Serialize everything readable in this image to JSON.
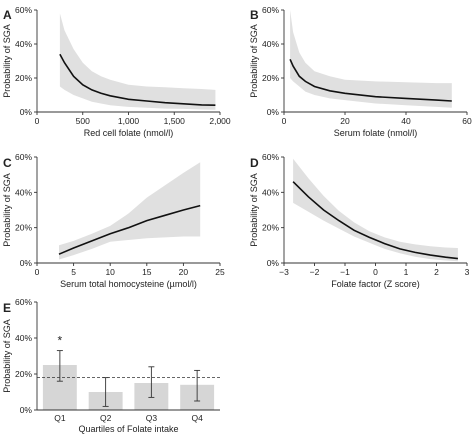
{
  "figure": {
    "colors": {
      "band": "#e0e0e0",
      "line": "#111111",
      "bar": "#d6d6d6",
      "axis": "#333333"
    }
  },
  "chart_data": [
    {
      "panel": "A",
      "type": "line",
      "xlabel": "Red cell folate (nmol/l)",
      "ylabel": "Probability of SGA",
      "xlim": [
        0,
        2000
      ],
      "ylim": [
        0,
        60
      ],
      "xticks": [
        0,
        500,
        1000,
        1500,
        2000
      ],
      "xtick_labels": [
        "0",
        "500",
        "1,000",
        "1,500",
        "2,000"
      ],
      "yticks": [
        0,
        20,
        40,
        60
      ],
      "ytick_labels": [
        "0%",
        "20%",
        "40%",
        "60%"
      ],
      "series": [
        {
          "x": [
            250,
            300,
            400,
            500,
            600,
            700,
            800,
            1000,
            1200,
            1400,
            1600,
            1800,
            1950
          ],
          "y": [
            34,
            29,
            21,
            16,
            13,
            11,
            9.5,
            7.5,
            6.5,
            5.5,
            4.8,
            4.2,
            4
          ],
          "ci_lower": [
            15,
            13,
            10,
            8,
            6,
            5,
            4,
            3,
            2.5,
            2,
            1.8,
            1.5,
            1.3
          ],
          "ci_upper": [
            58,
            48,
            37,
            29,
            24,
            21,
            19,
            16,
            15,
            14.5,
            14,
            13.5,
            13
          ]
        }
      ]
    },
    {
      "panel": "B",
      "type": "line",
      "xlabel": "Serum folate (nmol/l)",
      "ylabel": "Probability of SGA",
      "xlim": [
        0,
        60
      ],
      "ylim": [
        0,
        60
      ],
      "xticks": [
        0,
        20,
        40,
        60
      ],
      "xtick_labels": [
        "0",
        "20",
        "40",
        "60"
      ],
      "yticks": [
        0,
        20,
        40,
        60
      ],
      "ytick_labels": [
        "0%",
        "20%",
        "40%",
        "60%"
      ],
      "series": [
        {
          "x": [
            2,
            3,
            5,
            7,
            10,
            15,
            20,
            30,
            40,
            50,
            55
          ],
          "y": [
            31,
            27,
            21,
            18,
            15,
            12.5,
            11,
            9,
            8,
            7,
            6.5
          ],
          "ci_lower": [
            20,
            18,
            15,
            12,
            10,
            8,
            7,
            5,
            4,
            3,
            2.5
          ],
          "ci_upper": [
            60,
            47,
            35,
            29,
            24,
            21,
            19,
            18,
            17.5,
            17,
            17
          ]
        }
      ]
    },
    {
      "panel": "C",
      "type": "line",
      "xlabel": "Serum total homocysteine (µmol/l)",
      "ylabel": "Probability of SGA",
      "xlim": [
        0,
        25
      ],
      "ylim": [
        0,
        60
      ],
      "xticks": [
        0,
        5,
        10,
        15,
        20,
        25
      ],
      "xtick_labels": [
        "0",
        "5",
        "10",
        "15",
        "20",
        "25"
      ],
      "yticks": [
        0,
        20,
        40,
        60
      ],
      "ytick_labels": [
        "0%",
        "20%",
        "40%",
        "60%"
      ],
      "series": [
        {
          "x": [
            3,
            5,
            7.5,
            10,
            12.5,
            15,
            17.5,
            20,
            22.3
          ],
          "y": [
            5,
            8.5,
            12.5,
            16.5,
            20,
            24,
            27,
            30,
            32.5
          ],
          "ci_lower": [
            2,
            4.5,
            8,
            12,
            13,
            14,
            14.5,
            15,
            15
          ],
          "ci_upper": [
            10,
            12.5,
            16.5,
            21,
            28,
            37,
            44,
            51,
            57
          ]
        }
      ]
    },
    {
      "panel": "D",
      "type": "line",
      "xlabel": "Folate factor (Z score)",
      "ylabel": "Probability of SGA",
      "xlim": [
        -3,
        3
      ],
      "ylim": [
        0,
        60
      ],
      "xticks": [
        -3,
        -2,
        -1,
        0,
        1,
        2,
        3
      ],
      "xtick_labels": [
        "−3",
        "−2",
        "−1",
        "0",
        "1",
        "2",
        "3"
      ],
      "yticks": [
        0,
        20,
        40,
        60
      ],
      "ytick_labels": [
        "0%",
        "20%",
        "40%",
        "60%"
      ],
      "series": [
        {
          "x": [
            -2.7,
            -2.2,
            -1.7,
            -1.2,
            -0.7,
            -0.2,
            0.3,
            0.8,
            1.3,
            1.8,
            2.3,
            2.7
          ],
          "y": [
            46,
            37.5,
            30,
            24,
            18.5,
            14.5,
            11,
            8,
            6,
            4.5,
            3.3,
            2.5
          ],
          "ci_lower": [
            34,
            29,
            24,
            19.5,
            15,
            11.5,
            8,
            5.5,
            3.5,
            2.2,
            1.4,
            1
          ],
          "ci_upper": [
            59,
            48,
            38,
            29.5,
            23,
            18,
            14.5,
            12,
            10.5,
            9.5,
            8.8,
            8.5
          ]
        }
      ]
    },
    {
      "panel": "E",
      "type": "bar",
      "xlabel": "Quartiles of Folate intake",
      "ylabel": "Probability of SGA",
      "ylim": [
        0,
        60
      ],
      "yticks": [
        0,
        20,
        40,
        60
      ],
      "ytick_labels": [
        "0%",
        "20%",
        "40%",
        "60%"
      ],
      "categories": [
        "Q1",
        "Q2",
        "Q3",
        "Q4"
      ],
      "values": [
        25,
        10,
        15,
        14
      ],
      "error_low": [
        16,
        2,
        7,
        5
      ],
      "error_high": [
        33,
        18,
        24,
        22
      ],
      "reference_line": 18,
      "annotations": [
        "*",
        "",
        "",
        ""
      ]
    }
  ]
}
